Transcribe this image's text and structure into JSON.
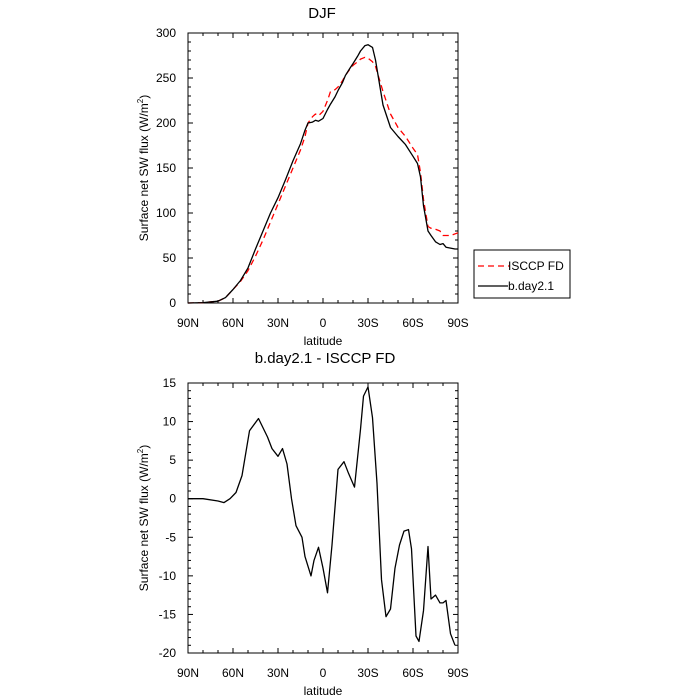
{
  "chart_data": [
    {
      "type": "line",
      "title": "DJF",
      "xlabel": "latitude",
      "ylabel": "Surface net SW flux (W/m²)",
      "ylabel_main": "Surface net SW flux (W/m",
      "ylabel_sup": "2",
      "ylabel_end": ")",
      "xlim": [
        90,
        -90
      ],
      "ylim": [
        0,
        300
      ],
      "x_ticks": [
        90,
        60,
        30,
        0,
        -30,
        -60,
        -90
      ],
      "x_tick_labels": [
        "90N",
        "60N",
        "30N",
        "0",
        "30S",
        "60S",
        "90S"
      ],
      "y_ticks": [
        0,
        50,
        100,
        150,
        200,
        250,
        300
      ],
      "y_tick_labels": [
        "0",
        "50",
        "100",
        "150",
        "200",
        "250",
        "300"
      ],
      "legend": [
        "ISCCP FD",
        "b.day2.1"
      ],
      "series": [
        {
          "name": "ISCCP FD",
          "color": "#ff0000",
          "dash": "dashed",
          "x": [
            90,
            80,
            70,
            65,
            60,
            55,
            50,
            45,
            40,
            35,
            30,
            25,
            20,
            15,
            12,
            10,
            7,
            5,
            3,
            0,
            -3,
            -5,
            -8,
            -10,
            -13,
            -15,
            -18,
            -20,
            -23,
            -25,
            -28,
            -30,
            -33,
            -35,
            -40,
            -45,
            -50,
            -55,
            -60,
            -63,
            -65,
            -67,
            -70,
            -72,
            -75,
            -78,
            -80,
            -85,
            -90
          ],
          "y": [
            0,
            0.5,
            2,
            6,
            15,
            24,
            36,
            52,
            70,
            90,
            110,
            130,
            150,
            170,
            185,
            200,
            207,
            210,
            208,
            213,
            225,
            235,
            237,
            240,
            247,
            253,
            260,
            264,
            268,
            271,
            273,
            272,
            268,
            263,
            235,
            210,
            195,
            185,
            172,
            165,
            145,
            115,
            85,
            83,
            82,
            80,
            75,
            75,
            78
          ]
        },
        {
          "name": "b.day2.1",
          "color": "#000000",
          "dash": "solid",
          "x": [
            90,
            80,
            70,
            65,
            60,
            55,
            50,
            45,
            40,
            35,
            30,
            25,
            20,
            15,
            12,
            10,
            7,
            5,
            3,
            0,
            -3,
            -5,
            -8,
            -10,
            -13,
            -15,
            -18,
            -20,
            -23,
            -25,
            -28,
            -30,
            -33,
            -35,
            -40,
            -45,
            -50,
            -55,
            -60,
            -63,
            -65,
            -67,
            -70,
            -72,
            -75,
            -78,
            -80,
            -82,
            -85,
            -88,
            -90
          ],
          "y": [
            0,
            0.5,
            2,
            6,
            15,
            25,
            39,
            60,
            80,
            100,
            117,
            137,
            158,
            177,
            192,
            200,
            201,
            203,
            202,
            205,
            215,
            221,
            229,
            236,
            245,
            253,
            261,
            266,
            274,
            280,
            286,
            287,
            284,
            270,
            220,
            195,
            185,
            176,
            163,
            155,
            140,
            108,
            80,
            75,
            68,
            65,
            66,
            62,
            61,
            60,
            60
          ]
        }
      ]
    },
    {
      "type": "line",
      "title": "b.day2.1 - ISCCP FD",
      "xlabel": "latitude",
      "ylabel": "Surface net SW flux (W/m²)",
      "ylabel_main": "Surface net SW flux (W/m",
      "ylabel_sup": "2",
      "ylabel_end": ")",
      "xlim": [
        90,
        -90
      ],
      "ylim": [
        -20,
        15
      ],
      "x_ticks": [
        90,
        60,
        30,
        0,
        -30,
        -60,
        -90
      ],
      "x_tick_labels": [
        "90N",
        "60N",
        "30N",
        "0",
        "30S",
        "60S",
        "90S"
      ],
      "y_ticks": [
        -20,
        -15,
        -10,
        -5,
        0,
        5,
        10,
        15
      ],
      "y_tick_labels": [
        "-20",
        "-15",
        "-10",
        "-5",
        "0",
        "5",
        "10",
        "15"
      ],
      "series": [
        {
          "name": "b.day2.1 - ISCCP FD",
          "color": "#000000",
          "dash": "solid",
          "x": [
            90,
            80,
            70,
            66,
            62,
            58,
            54,
            49,
            43,
            37,
            34,
            30,
            27,
            24,
            21,
            18,
            14,
            12,
            8,
            6,
            3,
            0,
            -3,
            -6,
            -10,
            -14,
            -17,
            -21,
            -25,
            -27,
            -30,
            -33,
            -36,
            -39,
            -42,
            -45,
            -48,
            -51,
            -54,
            -57,
            -59,
            -62,
            -64,
            -67,
            -70,
            -72,
            -75,
            -78,
            -80,
            -82,
            -85,
            -88
          ],
          "y": [
            0,
            0,
            -0.3,
            -0.5,
            0,
            0.8,
            3,
            8.8,
            10.4,
            8,
            6.5,
            5.5,
            6.5,
            4.5,
            0,
            -3.5,
            -5,
            -7.5,
            -10,
            -8,
            -6.3,
            -9,
            -12.2,
            -6,
            3.8,
            4.8,
            3.3,
            1.5,
            9,
            13.3,
            14.5,
            10.5,
            2,
            -10.5,
            -15.3,
            -14.3,
            -9,
            -6,
            -4.2,
            -4,
            -6.5,
            -17.8,
            -18.5,
            -14.5,
            -6.2,
            -13,
            -12.5,
            -13.5,
            -13.5,
            -13.2,
            -17.5,
            -19
          ]
        }
      ]
    }
  ]
}
